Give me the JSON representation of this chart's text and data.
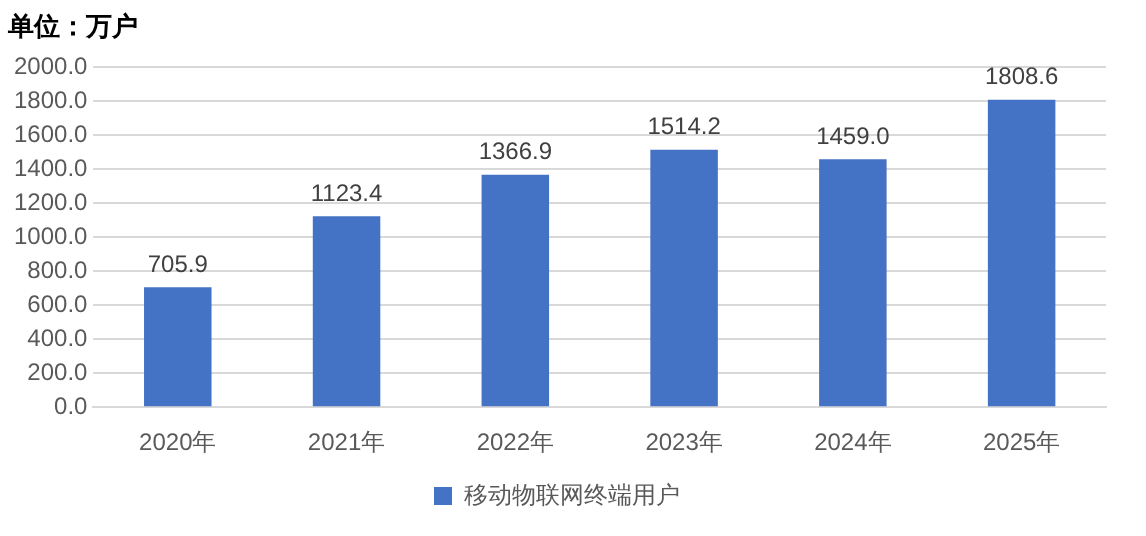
{
  "chart_data": {
    "type": "bar",
    "title": "单位：万户",
    "categories": [
      "2020年",
      "2021年",
      "2022年",
      "2023年",
      "2024年",
      "2025年"
    ],
    "series": [
      {
        "name": "移动物联网终端用户",
        "color": "#4472c4",
        "values": [
          705.9,
          1123.4,
          1366.9,
          1514.2,
          1459.0,
          1808.6
        ],
        "value_labels": [
          "705.9",
          "1123.4",
          "1366.9",
          "1514.2",
          "1459.0",
          "1808.6"
        ]
      }
    ],
    "ylim": [
      0,
      2000
    ],
    "yticks": [
      {
        "value": 0,
        "label": "0.0"
      },
      {
        "value": 200,
        "label": "200.0"
      },
      {
        "value": 400,
        "label": "400.0"
      },
      {
        "value": 600,
        "label": "600.0"
      },
      {
        "value": 800,
        "label": "800.0"
      },
      {
        "value": 1000,
        "label": "1000.0"
      },
      {
        "value": 1200,
        "label": "1200.0"
      },
      {
        "value": 1400,
        "label": "1400.0"
      },
      {
        "value": 1600,
        "label": "1600.0"
      },
      {
        "value": 1800,
        "label": "1800.0"
      },
      {
        "value": 2000,
        "label": "2000.0"
      }
    ],
    "grid": "y",
    "legend": "bottom"
  }
}
